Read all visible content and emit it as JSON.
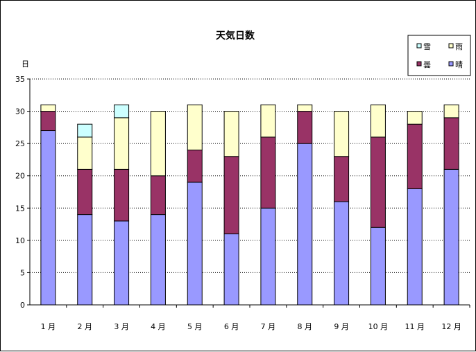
{
  "chart_data": {
    "type": "bar",
    "stacked": true,
    "title": "天気日数",
    "ylabel": "日",
    "ylim": [
      0,
      35
    ],
    "yticks": [
      0,
      5,
      10,
      15,
      20,
      25,
      30,
      35
    ],
    "grid": "horizontal-dotted",
    "legend_position": "top-right",
    "categories": [
      "1 月",
      "2 月",
      "3 月",
      "4 月",
      "5 月",
      "6 月",
      "7 月",
      "8 月",
      "9 月",
      "10 月",
      "11 月",
      "12 月"
    ],
    "series": [
      {
        "name": "晴",
        "color": "#9999ff",
        "values": [
          27,
          14,
          13,
          14,
          19,
          11,
          15,
          25,
          16,
          12,
          18,
          21
        ]
      },
      {
        "name": "曇",
        "color": "#993366",
        "values": [
          3,
          7,
          8,
          6,
          5,
          12,
          11,
          5,
          7,
          14,
          10,
          8
        ]
      },
      {
        "name": "雨",
        "color": "#ffffcc",
        "values": [
          1,
          5,
          8,
          10,
          7,
          7,
          5,
          1,
          7,
          5,
          2,
          2
        ]
      },
      {
        "name": "雪",
        "color": "#ccffff",
        "values": [
          0,
          2,
          2,
          0,
          0,
          0,
          0,
          0,
          0,
          0,
          0,
          0
        ]
      }
    ],
    "legend_order": [
      "雪",
      "雨",
      "曇",
      "晴"
    ]
  }
}
